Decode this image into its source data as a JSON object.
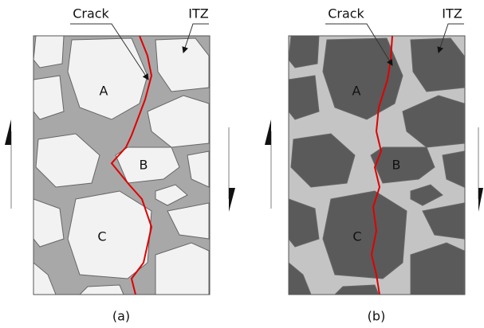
{
  "panels": [
    {
      "caption": "(a)",
      "crack_label": "Crack",
      "itz_label": "ITZ",
      "regions": [
        "A",
        "B",
        "C"
      ]
    },
    {
      "caption": "(b)",
      "crack_label": "Crack",
      "itz_label": "ITZ",
      "regions": [
        "A",
        "B",
        "C"
      ]
    }
  ]
}
